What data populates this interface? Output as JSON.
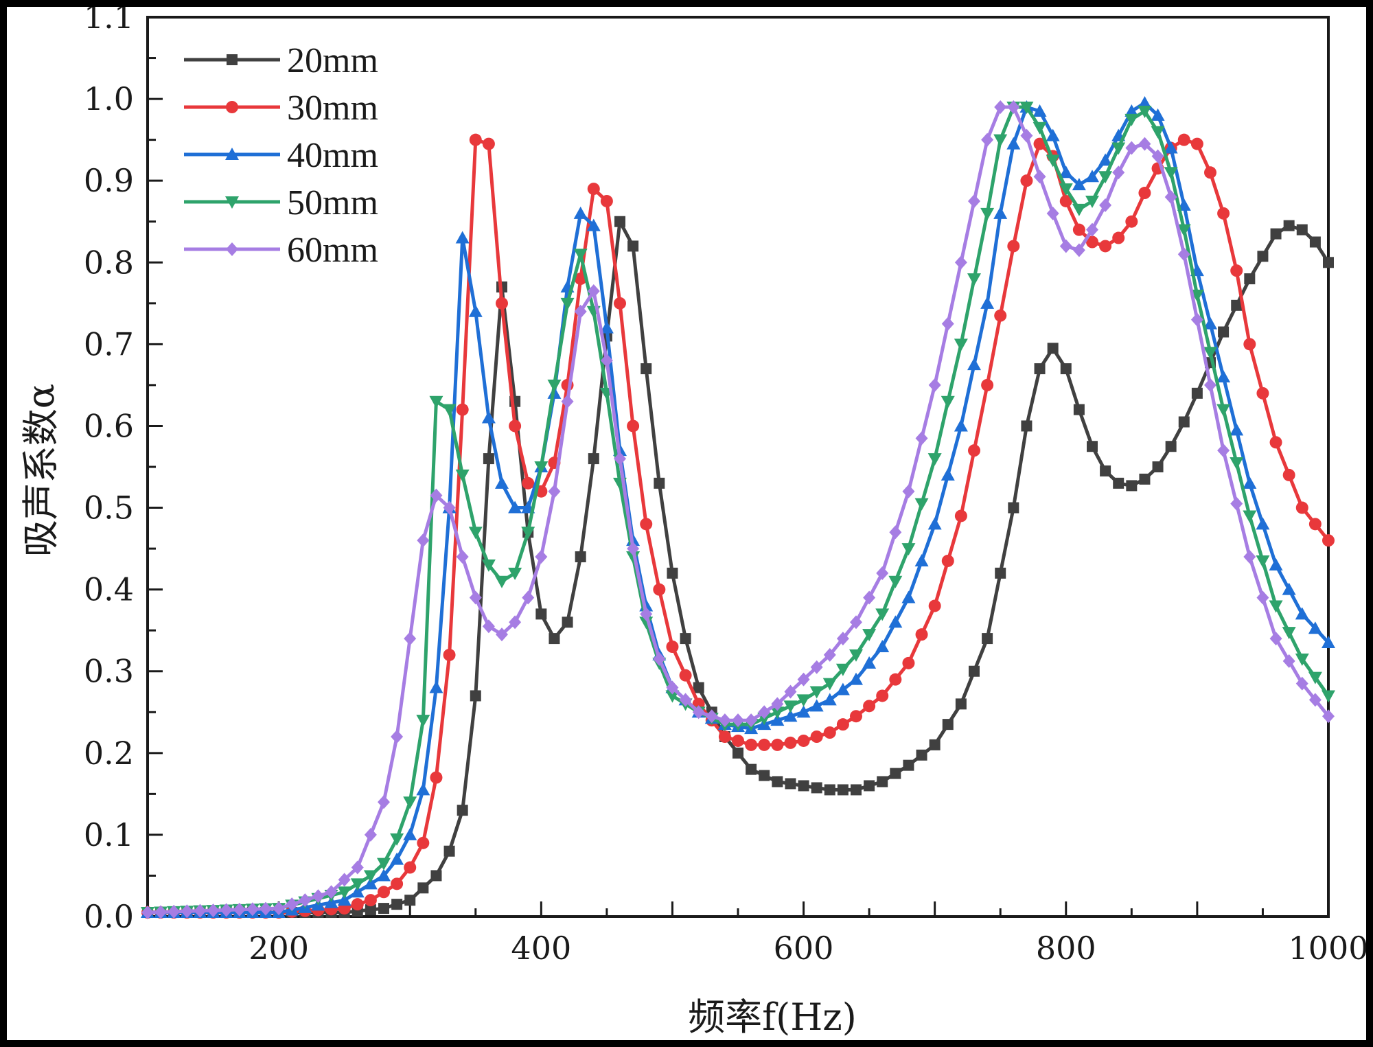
{
  "chart_data": {
    "type": "line",
    "xlabel": "频率f(Hz)",
    "ylabel": "吸声系数α",
    "xlim": [
      100,
      1000
    ],
    "ylim": [
      0,
      1.1
    ],
    "xticks": [
      200,
      400,
      600,
      800,
      1000
    ],
    "xtick_labels": [
      "200",
      "400",
      "600",
      "800",
      "1000"
    ],
    "yticks": [
      0,
      0.1,
      0.2,
      0.3,
      0.4,
      0.5,
      0.6,
      0.7,
      0.8,
      0.9,
      1.0,
      1.1
    ],
    "ytick_labels": [
      "0.0",
      "0.1",
      "0.2",
      "0.3",
      "0.4",
      "0.5",
      "0.6",
      "0.7",
      "0.8",
      "0.9",
      "1.0",
      "1.1"
    ],
    "grid": false,
    "legend_position": "top-left",
    "series": [
      {
        "name": "20mm",
        "color": "#404040",
        "marker": "square",
        "points": [
          [
            100,
            0.005
          ],
          [
            200,
            0.005
          ],
          [
            250,
            0.005
          ],
          [
            280,
            0.01
          ],
          [
            300,
            0.02
          ],
          [
            320,
            0.05
          ],
          [
            330,
            0.08
          ],
          [
            340,
            0.13
          ],
          [
            350,
            0.27
          ],
          [
            360,
            0.56
          ],
          [
            370,
            0.77
          ],
          [
            380,
            0.63
          ],
          [
            390,
            0.47
          ],
          [
            400,
            0.37
          ],
          [
            410,
            0.34
          ],
          [
            420,
            0.36
          ],
          [
            430,
            0.44
          ],
          [
            440,
            0.56
          ],
          [
            450,
            0.71
          ],
          [
            460,
            0.85
          ],
          [
            470,
            0.82
          ],
          [
            480,
            0.67
          ],
          [
            490,
            0.53
          ],
          [
            500,
            0.42
          ],
          [
            510,
            0.34
          ],
          [
            520,
            0.28
          ],
          [
            540,
            0.22
          ],
          [
            560,
            0.18
          ],
          [
            580,
            0.165
          ],
          [
            600,
            0.16
          ],
          [
            620,
            0.155
          ],
          [
            640,
            0.155
          ],
          [
            660,
            0.165
          ],
          [
            680,
            0.185
          ],
          [
            700,
            0.21
          ],
          [
            720,
            0.26
          ],
          [
            740,
            0.34
          ],
          [
            760,
            0.5
          ],
          [
            770,
            0.6
          ],
          [
            780,
            0.67
          ],
          [
            790,
            0.695
          ],
          [
            800,
            0.67
          ],
          [
            810,
            0.62
          ],
          [
            820,
            0.575
          ],
          [
            830,
            0.545
          ],
          [
            840,
            0.53
          ],
          [
            850,
            0.527
          ],
          [
            860,
            0.535
          ],
          [
            870,
            0.55
          ],
          [
            880,
            0.575
          ],
          [
            890,
            0.605
          ],
          [
            900,
            0.64
          ],
          [
            920,
            0.715
          ],
          [
            940,
            0.78
          ],
          [
            960,
            0.835
          ],
          [
            970,
            0.845
          ],
          [
            980,
            0.84
          ],
          [
            990,
            0.825
          ],
          [
            1000,
            0.8
          ]
        ]
      },
      {
        "name": "30mm",
        "color": "#e8383b",
        "marker": "circle",
        "points": [
          [
            100,
            0.005
          ],
          [
            200,
            0.005
          ],
          [
            250,
            0.01
          ],
          [
            270,
            0.02
          ],
          [
            290,
            0.04
          ],
          [
            300,
            0.06
          ],
          [
            310,
            0.09
          ],
          [
            320,
            0.17
          ],
          [
            330,
            0.32
          ],
          [
            340,
            0.62
          ],
          [
            350,
            0.95
          ],
          [
            360,
            0.945
          ],
          [
            370,
            0.75
          ],
          [
            380,
            0.6
          ],
          [
            390,
            0.53
          ],
          [
            400,
            0.52
          ],
          [
            410,
            0.555
          ],
          [
            420,
            0.65
          ],
          [
            430,
            0.78
          ],
          [
            440,
            0.89
          ],
          [
            450,
            0.875
          ],
          [
            460,
            0.75
          ],
          [
            470,
            0.6
          ],
          [
            480,
            0.48
          ],
          [
            490,
            0.4
          ],
          [
            500,
            0.33
          ],
          [
            520,
            0.26
          ],
          [
            540,
            0.22
          ],
          [
            560,
            0.21
          ],
          [
            580,
            0.21
          ],
          [
            600,
            0.215
          ],
          [
            620,
            0.225
          ],
          [
            640,
            0.245
          ],
          [
            660,
            0.27
          ],
          [
            680,
            0.31
          ],
          [
            700,
            0.38
          ],
          [
            720,
            0.49
          ],
          [
            740,
            0.65
          ],
          [
            760,
            0.82
          ],
          [
            770,
            0.9
          ],
          [
            780,
            0.945
          ],
          [
            790,
            0.93
          ],
          [
            800,
            0.875
          ],
          [
            810,
            0.84
          ],
          [
            820,
            0.825
          ],
          [
            830,
            0.82
          ],
          [
            840,
            0.83
          ],
          [
            850,
            0.85
          ],
          [
            860,
            0.885
          ],
          [
            870,
            0.915
          ],
          [
            880,
            0.94
          ],
          [
            890,
            0.95
          ],
          [
            900,
            0.945
          ],
          [
            910,
            0.91
          ],
          [
            920,
            0.86
          ],
          [
            930,
            0.79
          ],
          [
            940,
            0.7
          ],
          [
            960,
            0.58
          ],
          [
            980,
            0.5
          ],
          [
            1000,
            0.46
          ]
        ]
      },
      {
        "name": "40mm",
        "color": "#1f6fd6",
        "marker": "triangle-up",
        "points": [
          [
            100,
            0.005
          ],
          [
            200,
            0.005
          ],
          [
            250,
            0.02
          ],
          [
            270,
            0.04
          ],
          [
            280,
            0.05
          ],
          [
            290,
            0.07
          ],
          [
            300,
            0.1
          ],
          [
            310,
            0.155
          ],
          [
            320,
            0.28
          ],
          [
            330,
            0.5
          ],
          [
            340,
            0.83
          ],
          [
            350,
            0.74
          ],
          [
            360,
            0.61
          ],
          [
            370,
            0.53
          ],
          [
            380,
            0.5
          ],
          [
            390,
            0.5
          ],
          [
            400,
            0.55
          ],
          [
            410,
            0.64
          ],
          [
            420,
            0.77
          ],
          [
            430,
            0.86
          ],
          [
            440,
            0.845
          ],
          [
            450,
            0.72
          ],
          [
            460,
            0.57
          ],
          [
            470,
            0.46
          ],
          [
            480,
            0.38
          ],
          [
            490,
            0.32
          ],
          [
            500,
            0.28
          ],
          [
            520,
            0.25
          ],
          [
            540,
            0.235
          ],
          [
            560,
            0.23
          ],
          [
            580,
            0.24
          ],
          [
            600,
            0.25
          ],
          [
            620,
            0.265
          ],
          [
            640,
            0.29
          ],
          [
            660,
            0.33
          ],
          [
            680,
            0.39
          ],
          [
            700,
            0.48
          ],
          [
            720,
            0.6
          ],
          [
            740,
            0.75
          ],
          [
            750,
            0.86
          ],
          [
            760,
            0.945
          ],
          [
            770,
            0.99
          ],
          [
            780,
            0.985
          ],
          [
            790,
            0.955
          ],
          [
            800,
            0.91
          ],
          [
            810,
            0.895
          ],
          [
            820,
            0.905
          ],
          [
            830,
            0.925
          ],
          [
            840,
            0.955
          ],
          [
            850,
            0.985
          ],
          [
            860,
            0.995
          ],
          [
            870,
            0.98
          ],
          [
            880,
            0.94
          ],
          [
            890,
            0.87
          ],
          [
            900,
            0.79
          ],
          [
            920,
            0.66
          ],
          [
            940,
            0.53
          ],
          [
            960,
            0.43
          ],
          [
            980,
            0.37
          ],
          [
            1000,
            0.335
          ]
        ]
      },
      {
        "name": "50mm",
        "color": "#2ea36b",
        "marker": "triangle-down",
        "points": [
          [
            100,
            0.005
          ],
          [
            200,
            0.01
          ],
          [
            250,
            0.03
          ],
          [
            270,
            0.05
          ],
          [
            280,
            0.065
          ],
          [
            290,
            0.095
          ],
          [
            300,
            0.14
          ],
          [
            310,
            0.24
          ],
          [
            320,
            0.63
          ],
          [
            330,
            0.62
          ],
          [
            340,
            0.54
          ],
          [
            350,
            0.47
          ],
          [
            360,
            0.43
          ],
          [
            370,
            0.41
          ],
          [
            380,
            0.42
          ],
          [
            390,
            0.47
          ],
          [
            400,
            0.55
          ],
          [
            410,
            0.65
          ],
          [
            420,
            0.75
          ],
          [
            430,
            0.81
          ],
          [
            440,
            0.74
          ],
          [
            450,
            0.64
          ],
          [
            460,
            0.53
          ],
          [
            470,
            0.44
          ],
          [
            480,
            0.36
          ],
          [
            490,
            0.31
          ],
          [
            500,
            0.27
          ],
          [
            520,
            0.25
          ],
          [
            540,
            0.235
          ],
          [
            560,
            0.235
          ],
          [
            580,
            0.25
          ],
          [
            600,
            0.265
          ],
          [
            620,
            0.285
          ],
          [
            640,
            0.32
          ],
          [
            660,
            0.37
          ],
          [
            680,
            0.45
          ],
          [
            700,
            0.56
          ],
          [
            720,
            0.7
          ],
          [
            740,
            0.86
          ],
          [
            750,
            0.95
          ],
          [
            760,
            0.99
          ],
          [
            770,
            0.99
          ],
          [
            780,
            0.965
          ],
          [
            790,
            0.925
          ],
          [
            800,
            0.89
          ],
          [
            810,
            0.865
          ],
          [
            820,
            0.875
          ],
          [
            830,
            0.905
          ],
          [
            840,
            0.94
          ],
          [
            850,
            0.975
          ],
          [
            860,
            0.985
          ],
          [
            870,
            0.96
          ],
          [
            880,
            0.91
          ],
          [
            890,
            0.84
          ],
          [
            900,
            0.76
          ],
          [
            920,
            0.62
          ],
          [
            940,
            0.49
          ],
          [
            960,
            0.38
          ],
          [
            980,
            0.315
          ],
          [
            1000,
            0.27
          ]
        ]
      },
      {
        "name": "60mm",
        "color": "#a67de3",
        "marker": "diamond",
        "points": [
          [
            100,
            0.005
          ],
          [
            200,
            0.01
          ],
          [
            240,
            0.03
          ],
          [
            260,
            0.06
          ],
          [
            280,
            0.14
          ],
          [
            290,
            0.22
          ],
          [
            300,
            0.34
          ],
          [
            310,
            0.46
          ],
          [
            320,
            0.515
          ],
          [
            330,
            0.5
          ],
          [
            340,
            0.44
          ],
          [
            350,
            0.39
          ],
          [
            360,
            0.355
          ],
          [
            370,
            0.345
          ],
          [
            380,
            0.36
          ],
          [
            390,
            0.39
          ],
          [
            400,
            0.44
          ],
          [
            410,
            0.52
          ],
          [
            420,
            0.63
          ],
          [
            430,
            0.74
          ],
          [
            440,
            0.765
          ],
          [
            450,
            0.68
          ],
          [
            460,
            0.56
          ],
          [
            470,
            0.45
          ],
          [
            480,
            0.37
          ],
          [
            490,
            0.315
          ],
          [
            500,
            0.28
          ],
          [
            520,
            0.25
          ],
          [
            540,
            0.24
          ],
          [
            560,
            0.24
          ],
          [
            580,
            0.26
          ],
          [
            600,
            0.29
          ],
          [
            620,
            0.32
          ],
          [
            640,
            0.36
          ],
          [
            660,
            0.42
          ],
          [
            680,
            0.52
          ],
          [
            700,
            0.65
          ],
          [
            720,
            0.8
          ],
          [
            740,
            0.95
          ],
          [
            750,
            0.99
          ],
          [
            760,
            0.99
          ],
          [
            770,
            0.955
          ],
          [
            780,
            0.905
          ],
          [
            790,
            0.86
          ],
          [
            800,
            0.82
          ],
          [
            810,
            0.815
          ],
          [
            820,
            0.84
          ],
          [
            830,
            0.87
          ],
          [
            840,
            0.91
          ],
          [
            850,
            0.94
          ],
          [
            860,
            0.945
          ],
          [
            870,
            0.93
          ],
          [
            880,
            0.88
          ],
          [
            890,
            0.81
          ],
          [
            900,
            0.73
          ],
          [
            920,
            0.57
          ],
          [
            940,
            0.44
          ],
          [
            960,
            0.34
          ],
          [
            980,
            0.285
          ],
          [
            1000,
            0.245
          ]
        ]
      }
    ]
  }
}
